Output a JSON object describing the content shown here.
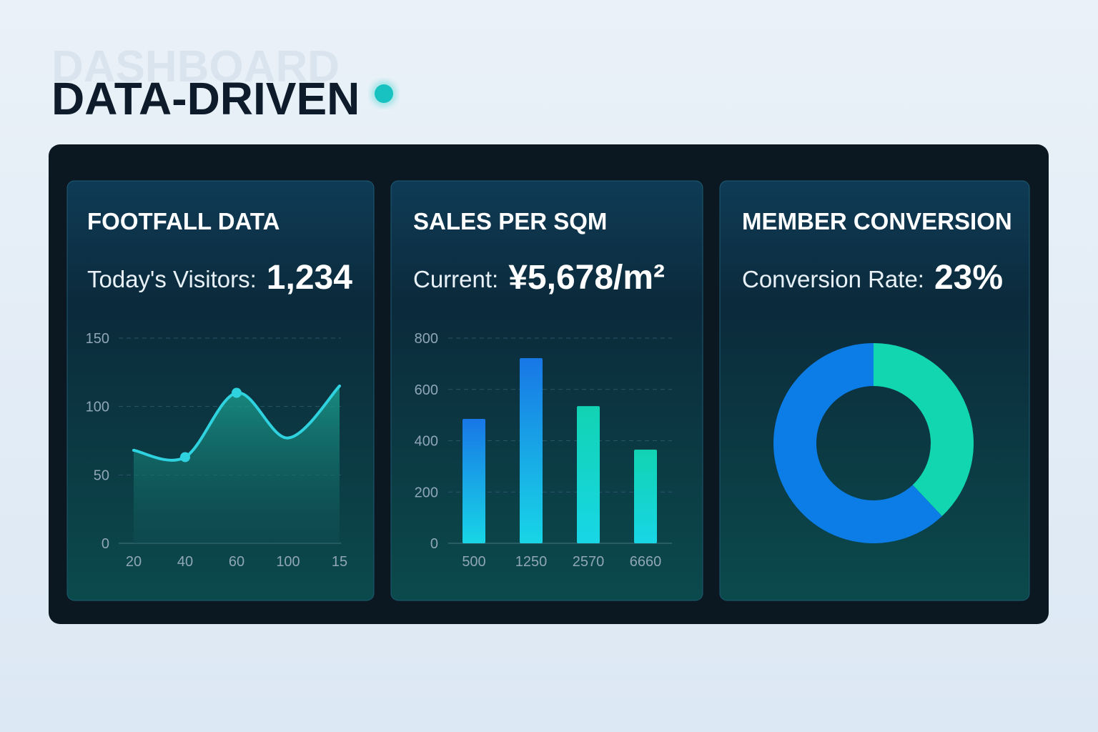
{
  "header": {
    "watermark": "DASHBOARD",
    "title": "DATA-DRIVEN"
  },
  "chart_data": [
    {
      "type": "line",
      "title": "FOOTFALL DATA",
      "kpi_label": "Today's Visitors:",
      "kpi_value": "1,234",
      "categories": [
        "20",
        "40",
        "60",
        "100",
        "15"
      ],
      "values": [
        68,
        63,
        110,
        77,
        115
      ],
      "color": "#2fd3e0",
      "markers": [
        1,
        2
      ],
      "ylim": [
        0,
        150
      ],
      "yticks": [
        0,
        50,
        100,
        150
      ],
      "grid": true
    },
    {
      "type": "bar",
      "title": "SALES PER SQM",
      "kpi_label": "Current:",
      "kpi_value": "¥5,678/m²",
      "categories": [
        "500",
        "1250",
        "2570",
        "6660"
      ],
      "values": [
        485,
        722,
        535,
        365
      ],
      "colors": [
        "#1877e6",
        "#1877e6",
        "#11d3b2",
        "#11d3b2"
      ],
      "ylim": [
        0,
        800
      ],
      "yticks": [
        0,
        200,
        400,
        600,
        800
      ],
      "grid": true
    },
    {
      "type": "pie",
      "title": "MEMBER CONVERSION",
      "kpi_label": "Conversion Rate:",
      "kpi_value": "23%",
      "values": [
        38,
        62
      ],
      "colors": [
        "#12d6b0",
        "#0c7de6"
      ],
      "donut": true
    }
  ]
}
